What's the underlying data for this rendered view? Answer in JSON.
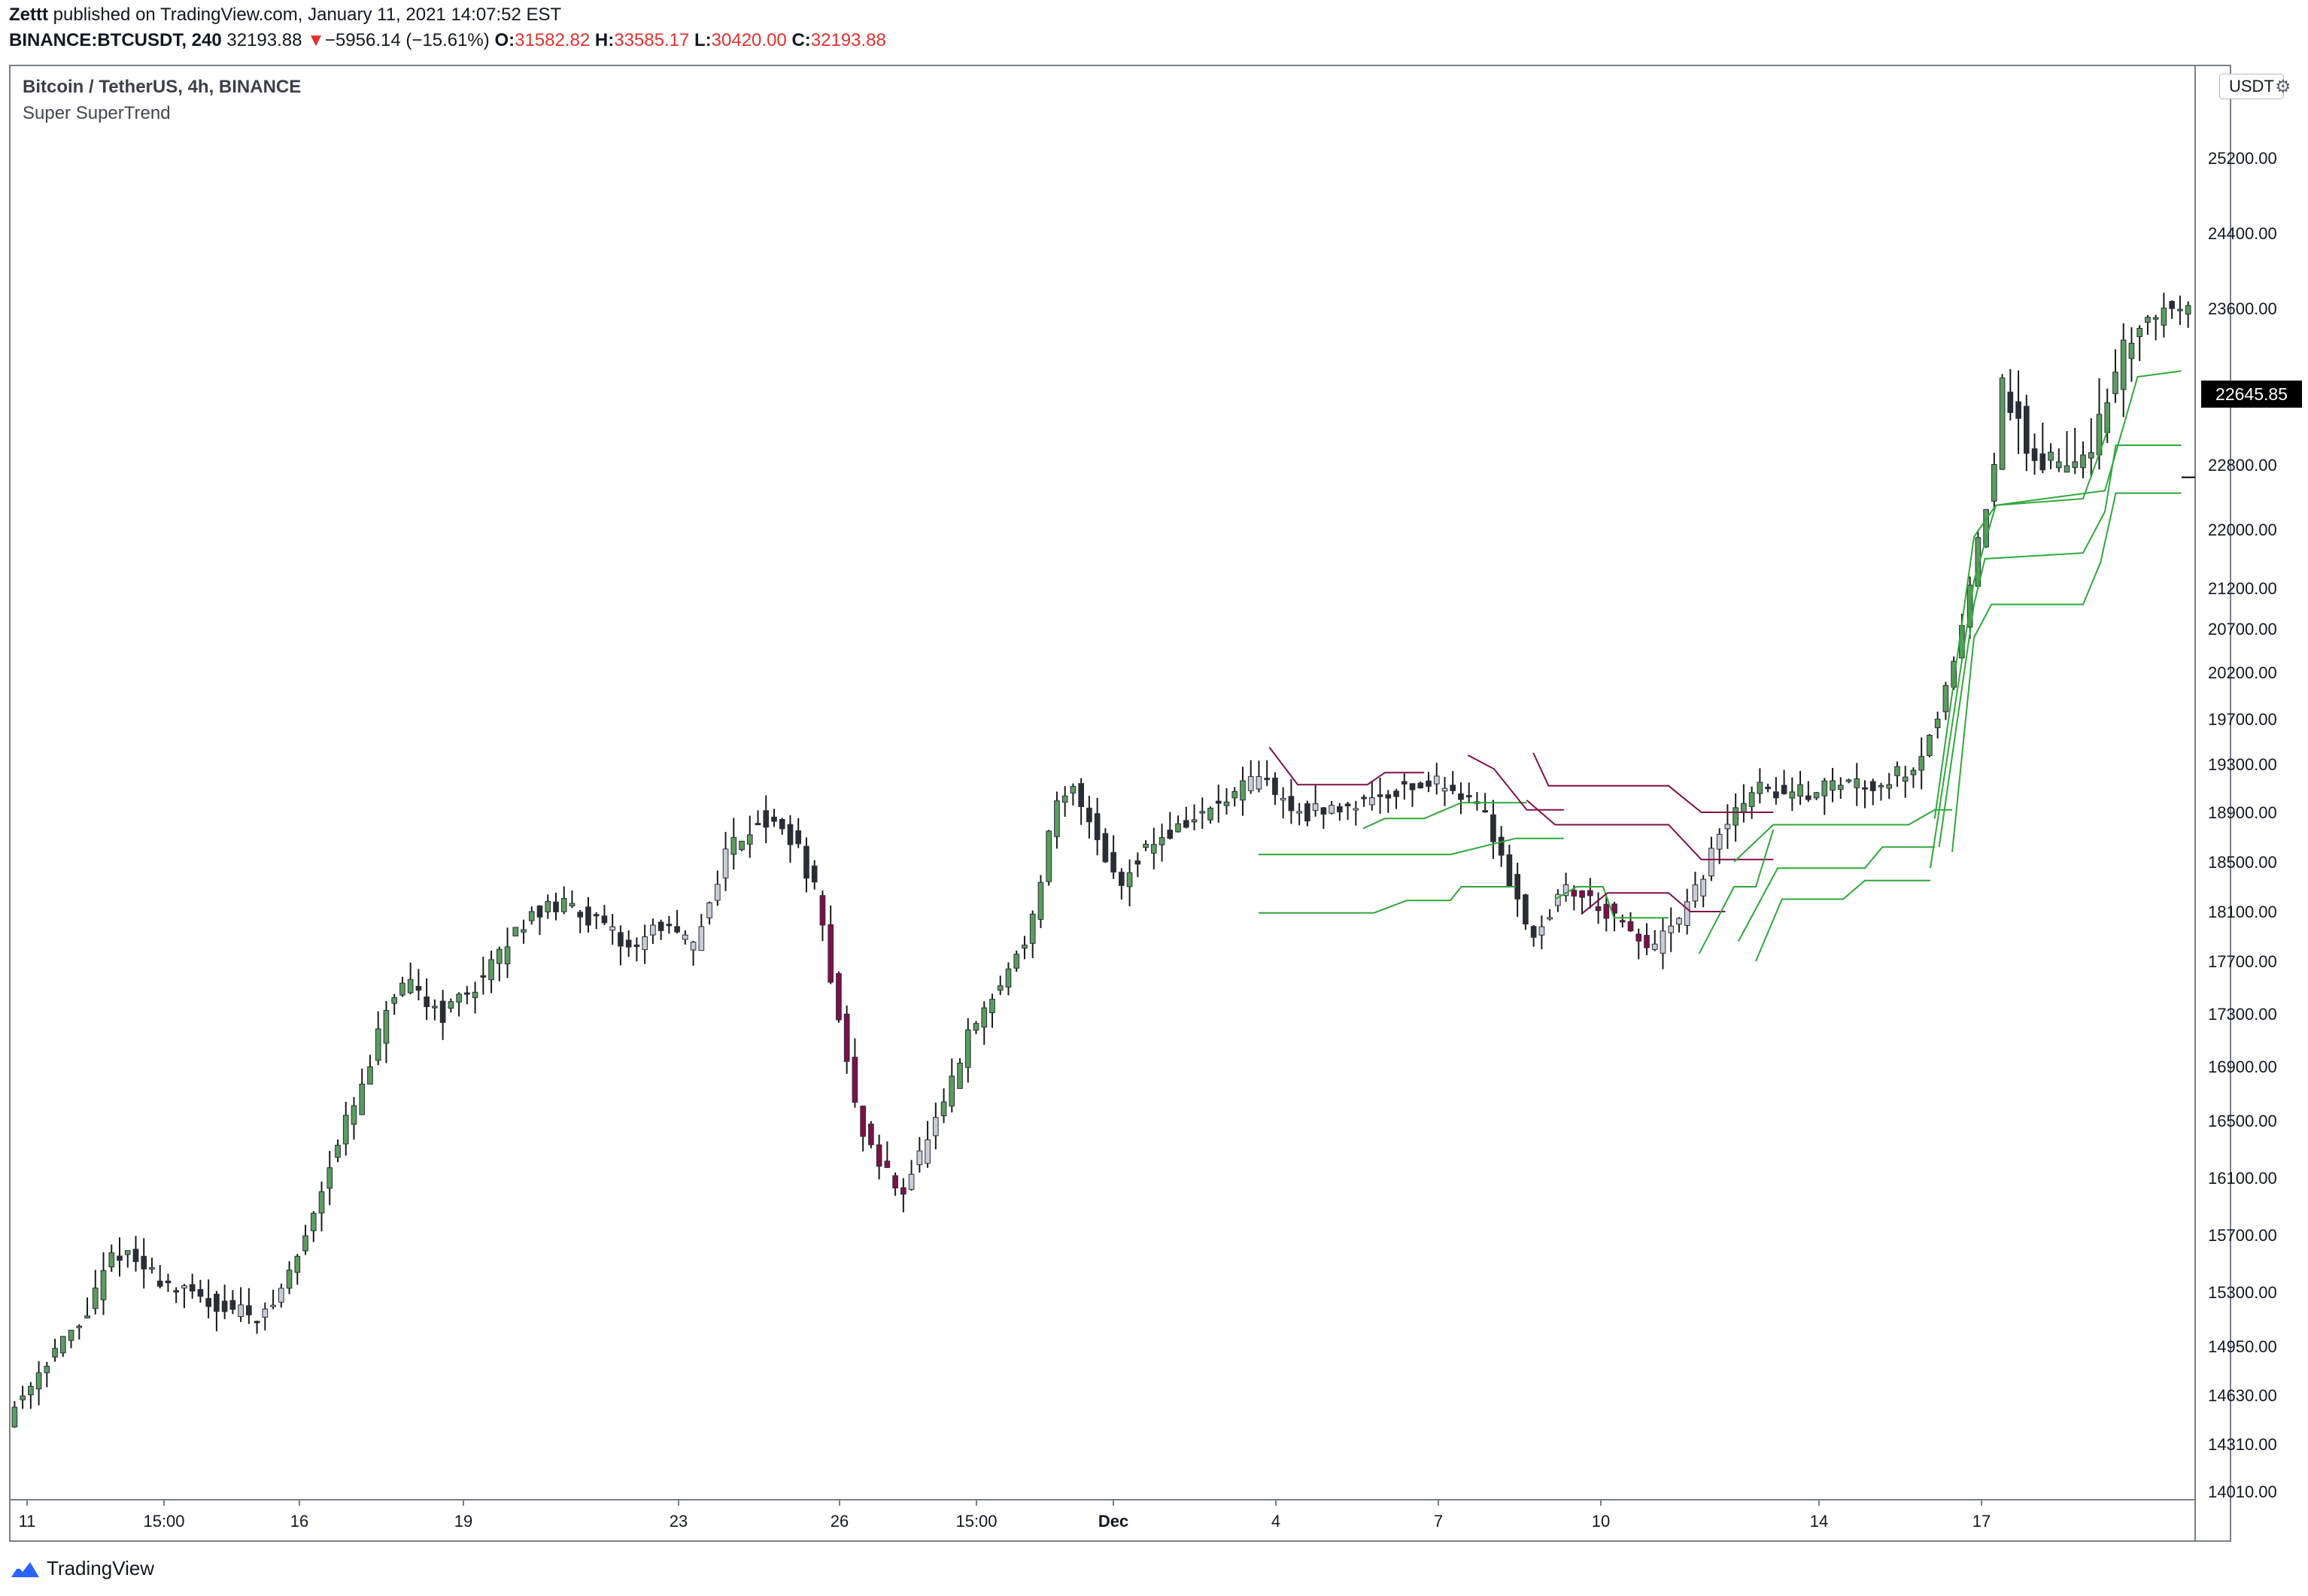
{
  "header": {
    "author": "Zettt",
    "published": " published on TradingView.com, January 11, 2021 14:07:52 EST",
    "symbol": "BINANCE:BTCUSDT, 240",
    "last": "32193.88",
    "change_arrow": "▼",
    "change": "−5956.14 (−15.61%)",
    "o_label": "O:",
    "o_value": "31582.82",
    "h_label": "H:",
    "h_value": "33585.17",
    "l_label": "L:",
    "l_value": "30420.00",
    "c_label": "C:",
    "c_value": "32193.88"
  },
  "legend": {
    "title": "Bitcoin / TetherUS, 4h, BINANCE",
    "indicator": "Super SuperTrend"
  },
  "currency_button": "USDT",
  "last_price_label": "22645.85",
  "brand": "TradingView",
  "colors": {
    "bull": "#5a9d5d",
    "bear": "#800f4a",
    "neutral_up": "#c9ccd6",
    "neutral_down": "#2b2d36",
    "trend_up": "#2fa83a",
    "trend_down": "#8b1a4a",
    "wick": "#1a1a1a"
  },
  "chart_data": {
    "type": "candlestick",
    "title": "Bitcoin / TetherUS, 4h, BINANCE",
    "y_ticks": [
      14010,
      14310,
      14630,
      14950,
      15300,
      15700,
      16100,
      16500,
      16900,
      17300,
      17700,
      18100,
      18500,
      18900,
      19300,
      19700,
      20200,
      20700,
      21200,
      22000,
      22800,
      23600,
      24400,
      25200
    ],
    "y_tick_labels": [
      "14010.00",
      "14310.00",
      "14630.00",
      "14950.00",
      "15300.00",
      "15700.00",
      "16100.00",
      "16500.00",
      "16900.00",
      "17300.00",
      "17700.00",
      "18100.00",
      "18500.00",
      "18900.00",
      "19300.00",
      "19700.00",
      "20200.00",
      "20700.00",
      "21200.00",
      "22000.00",
      "22800.00",
      "23600.00",
      "24400.00",
      "25200.00"
    ],
    "x_ticks": [
      "11",
      "15:00",
      "16",
      "19",
      "23",
      "26",
      "15:00",
      "Dec",
      "4",
      "7",
      "10",
      "14",
      "17"
    ],
    "last_price": 22645.85,
    "series": [
      {
        "name": "Super SuperTrend",
        "segments": [
          {
            "color": "bear",
            "points": [
              [
                0.577,
                19450
              ],
              [
                0.59,
                19130
              ],
              [
                0.622,
                19130
              ],
              [
                0.63,
                19230
              ],
              [
                0.648,
                19230
              ]
            ]
          },
          {
            "color": "trend_up",
            "points": [
              [
                0.62,
                18770
              ],
              [
                0.63,
                18850
              ],
              [
                0.648,
                18850
              ],
              [
                0.665,
                18980
              ],
              [
                0.695,
                18980
              ]
            ]
          },
          {
            "color": "bear",
            "points": [
              [
                0.668,
                19380
              ],
              [
                0.68,
                19260
              ],
              [
                0.695,
                18920
              ],
              [
                0.712,
                18920
              ]
            ]
          },
          {
            "color": "trend_up",
            "points": [
              [
                0.572,
                18560
              ],
              [
                0.6,
                18560
              ],
              [
                0.66,
                18560
              ],
              [
                0.69,
                18690
              ],
              [
                0.712,
                18690
              ]
            ]
          },
          {
            "color": "trend_up",
            "points": [
              [
                0.572,
                18090
              ],
              [
                0.625,
                18090
              ],
              [
                0.64,
                18190
              ],
              [
                0.66,
                18190
              ],
              [
                0.665,
                18300
              ],
              [
                0.69,
                18300
              ]
            ]
          },
          {
            "color": "bear",
            "points": [
              [
                0.698,
                19400
              ],
              [
                0.705,
                19120
              ],
              [
                0.76,
                19120
              ],
              [
                0.775,
                18900
              ],
              [
                0.808,
                18900
              ]
            ]
          },
          {
            "color": "bear",
            "points": [
              [
                0.695,
                19000
              ],
              [
                0.708,
                18800
              ],
              [
                0.76,
                18800
              ],
              [
                0.775,
                18520
              ],
              [
                0.808,
                18520
              ]
            ]
          },
          {
            "color": "trend_up",
            "points": [
              [
                0.708,
                18200
              ],
              [
                0.718,
                18300
              ],
              [
                0.73,
                18300
              ],
              [
                0.735,
                18050
              ],
              [
                0.76,
                18050
              ]
            ]
          },
          {
            "color": "bear",
            "points": [
              [
                0.72,
                18080
              ],
              [
                0.732,
                18250
              ],
              [
                0.76,
                18250
              ],
              [
                0.77,
                18100
              ],
              [
                0.786,
                18100
              ]
            ]
          },
          {
            "color": "trend_up",
            "points": [
              [
                0.774,
                17760
              ],
              [
                0.79,
                18300
              ],
              [
                0.8,
                18300
              ],
              [
                0.808,
                18760
              ]
            ]
          },
          {
            "color": "trend_up",
            "points": [
              [
                0.79,
                18500
              ],
              [
                0.808,
                18800
              ],
              [
                0.87,
                18800
              ],
              [
                0.882,
                18920
              ],
              [
                0.89,
                18920
              ]
            ]
          },
          {
            "color": "trend_up",
            "points": [
              [
                0.792,
                17860
              ],
              [
                0.81,
                18450
              ],
              [
                0.85,
                18450
              ],
              [
                0.858,
                18620
              ],
              [
                0.882,
                18620
              ]
            ]
          },
          {
            "color": "trend_up",
            "points": [
              [
                0.8,
                17700
              ],
              [
                0.812,
                18200
              ],
              [
                0.84,
                18200
              ],
              [
                0.85,
                18350
              ],
              [
                0.88,
                18350
              ]
            ]
          },
          {
            "color": "trend_up",
            "points": [
              [
                0.88,
                18450
              ],
              [
                0.9,
                21300
              ],
              [
                0.91,
                22300
              ],
              [
                0.95,
                22380
              ],
              [
                0.962,
                23000
              ]
            ]
          },
          {
            "color": "trend_up",
            "points": [
              [
                0.882,
                18850
              ],
              [
                0.9,
                21900
              ],
              [
                0.91,
                22300
              ],
              [
                0.96,
                22480
              ],
              [
                0.975,
                23250
              ],
              [
                0.995,
                23280
              ]
            ]
          },
          {
            "color": "trend_up",
            "points": [
              [
                0.884,
                18620
              ],
              [
                0.9,
                21000
              ],
              [
                0.905,
                21600
              ],
              [
                0.95,
                21680
              ],
              [
                0.96,
                22220
              ],
              [
                0.965,
                22900
              ],
              [
                0.995,
                22900
              ]
            ]
          },
          {
            "color": "trend_up",
            "points": [
              [
                0.89,
                18580
              ],
              [
                0.9,
                20600
              ],
              [
                0.908,
                21000
              ],
              [
                0.95,
                21000
              ],
              [
                0.958,
                21550
              ],
              [
                0.965,
                22450
              ],
              [
                0.995,
                22450
              ]
            ]
          }
        ]
      }
    ]
  }
}
